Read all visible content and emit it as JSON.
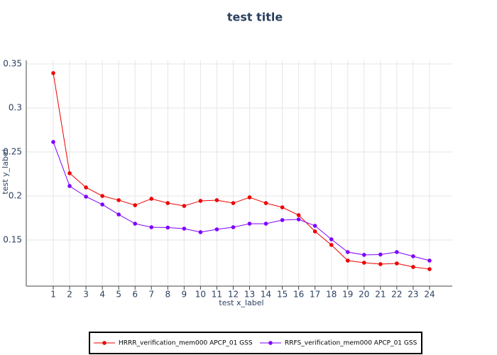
{
  "chart_data": {
    "type": "line",
    "title": "test title",
    "x_label": "test x_label",
    "y_label": "test y_label",
    "x": [
      1,
      2,
      3,
      4,
      5,
      6,
      7,
      8,
      9,
      10,
      11,
      12,
      13,
      14,
      15,
      16,
      17,
      18,
      19,
      20,
      21,
      22,
      23,
      24
    ],
    "series": [
      {
        "name": "HRRR_verification_mem000 APCP_01 GSS",
        "color": "#ee0000",
        "values": [
          0.3395,
          0.2258,
          0.2097,
          0.2,
          0.1952,
          0.1895,
          0.1968,
          0.1919,
          0.1887,
          0.1944,
          0.1952,
          0.1919,
          0.1984,
          0.1919,
          0.1871,
          0.1782,
          0.1597,
          0.1444,
          0.1266,
          0.1242,
          0.1226,
          0.1234,
          0.1194,
          0.1169
        ]
      },
      {
        "name": "RRFS_verification_mem000 APCP_01 GSS",
        "color": "#7f00ff",
        "values": [
          0.2613,
          0.2113,
          0.1992,
          0.1903,
          0.179,
          0.1685,
          0.1645,
          0.1641,
          0.1629,
          0.1589,
          0.1621,
          0.1645,
          0.1685,
          0.1685,
          0.1726,
          0.1734,
          0.1661,
          0.1508,
          0.1363,
          0.1331,
          0.1335,
          0.1363,
          0.1315,
          0.1266
        ]
      }
    ],
    "xlim": [
      -0.65,
      25.39
    ],
    "xticks": [
      1,
      2,
      3,
      4,
      5,
      6,
      7,
      8,
      9,
      10,
      11,
      12,
      13,
      14,
      15,
      16,
      17,
      18,
      19,
      20,
      21,
      22,
      23,
      24
    ],
    "ylim": [
      0.0976,
      0.354
    ],
    "yticks": [
      0.15,
      0.2,
      0.25,
      0.3,
      0.35
    ],
    "grid": true,
    "legend_position": "bottom"
  }
}
